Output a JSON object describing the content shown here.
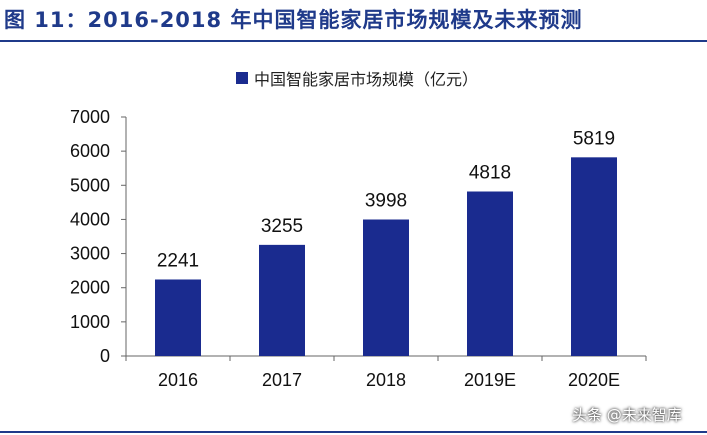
{
  "figure": {
    "title": "图 11：2016-2018 年中国智能家居市场规模及未来预测"
  },
  "watermark": "头条 @未来智库",
  "chart_data": {
    "type": "bar",
    "categories": [
      "2016",
      "2017",
      "2018",
      "2019E",
      "2020E"
    ],
    "series": [
      {
        "name": "中国智能家居市场规模（亿元）",
        "values": [
          2241,
          3255,
          3998,
          4818,
          5819
        ],
        "color": "#1a2b8f"
      }
    ],
    "yticks": [
      0,
      1000,
      2000,
      3000,
      4000,
      5000,
      6000,
      7000
    ],
    "ylim": [
      0,
      7000
    ],
    "grid": false,
    "legend_position": "top-center",
    "data_labels": true
  }
}
